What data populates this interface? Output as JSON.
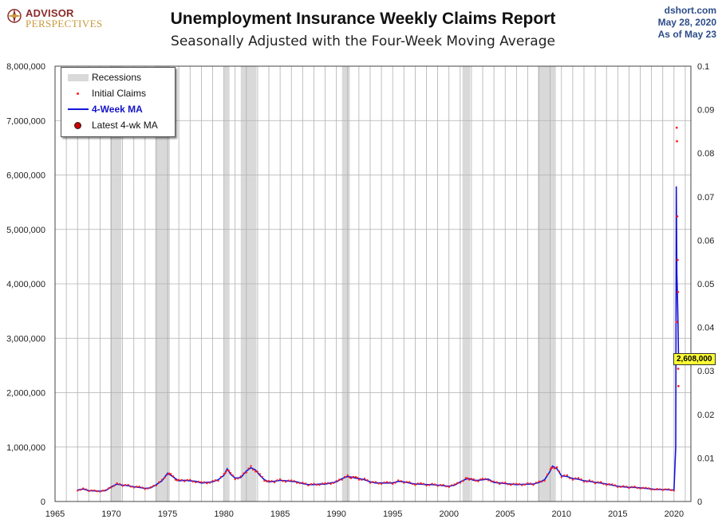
{
  "header": {
    "logo_line1": "ADVISOR",
    "logo_line2": "PERSPECTIVES",
    "title": "Unemployment Insurance Weekly Claims Report",
    "subtitle": "Seasonally Adjusted with the Four-Week Moving Average",
    "source": "dshort.com",
    "date": "May 28, 2020",
    "as_of": "As of May 23"
  },
  "colors": {
    "ma_line": "#1414dc",
    "claims_dots": "#ff2020",
    "recession": "#d9d9d9",
    "grid": "#b0b0b0",
    "callout": "#ffff33",
    "latest_dot": "#cc0000"
  },
  "chart_data": {
    "type": "line",
    "title": "Unemployment Insurance Weekly Claims Report",
    "subtitle": "Seasonally Adjusted with the Four-Week Moving Average",
    "xlim": [
      1965,
      2021.5
    ],
    "ylim": [
      0,
      8000000
    ],
    "y2lim": [
      0,
      0.1
    ],
    "x_ticks": [
      1965,
      1970,
      1975,
      1980,
      1985,
      1990,
      1995,
      2000,
      2005,
      2010,
      2015,
      2020
    ],
    "y_tick_labels": [
      "0",
      "1,000,000",
      "2,000,000",
      "3,000,000",
      "4,000,000",
      "5,000,000",
      "6,000,000",
      "7,000,000",
      "8,000,000"
    ],
    "y_tick_values": [
      0,
      1000000,
      2000000,
      3000000,
      4000000,
      5000000,
      6000000,
      7000000,
      8000000
    ],
    "y2_tick_labels": [
      "0",
      "0.01",
      "0.02",
      "0.03",
      "0.04",
      "0.05",
      "0.06",
      "0.07",
      "0.08",
      "0.09",
      "0.1"
    ],
    "grid": true,
    "legend_position": "top-left",
    "legend": [
      "Recessions",
      "Initial Claims",
      "4-Week MA",
      "Latest 4-wk MA"
    ],
    "recessions": [
      [
        1969.9,
        1970.9
      ],
      [
        1973.9,
        1975.2
      ],
      [
        1980.0,
        1980.5
      ],
      [
        1981.5,
        1982.9
      ],
      [
        1990.5,
        1991.2
      ],
      [
        2001.2,
        2001.9
      ],
      [
        2007.9,
        2009.5
      ]
    ],
    "series": [
      {
        "name": "4-Week MA",
        "x": [
          1967.0,
          1967.5,
          1968.0,
          1968.5,
          1969.0,
          1969.5,
          1970.0,
          1970.5,
          1971.0,
          1971.5,
          1972.0,
          1972.5,
          1973.0,
          1973.5,
          1974.0,
          1974.5,
          1975.0,
          1975.3,
          1975.7,
          1976.0,
          1976.5,
          1977.0,
          1977.5,
          1978.0,
          1978.5,
          1979.0,
          1979.5,
          1980.0,
          1980.3,
          1980.6,
          1981.0,
          1981.5,
          1982.0,
          1982.4,
          1982.8,
          1983.2,
          1983.6,
          1984.0,
          1984.5,
          1985.0,
          1985.5,
          1986.0,
          1986.5,
          1987.0,
          1987.5,
          1988.0,
          1988.5,
          1989.0,
          1989.5,
          1990.0,
          1990.5,
          1991.0,
          1991.3,
          1991.7,
          1992.0,
          1992.5,
          1993.0,
          1993.5,
          1994.0,
          1994.5,
          1995.0,
          1995.5,
          1996.0,
          1996.5,
          1997.0,
          1997.5,
          1998.0,
          1998.5,
          1999.0,
          1999.5,
          2000.0,
          2000.5,
          2001.0,
          2001.5,
          2001.8,
          2002.2,
          2002.6,
          2003.0,
          2003.5,
          2004.0,
          2004.5,
          2005.0,
          2005.5,
          2006.0,
          2006.5,
          2007.0,
          2007.5,
          2008.0,
          2008.5,
          2009.0,
          2009.2,
          2009.6,
          2010.0,
          2010.5,
          2011.0,
          2011.5,
          2012.0,
          2012.5,
          2013.0,
          2013.5,
          2014.0,
          2014.5,
          2015.0,
          2015.5,
          2016.0,
          2016.5,
          2017.0,
          2017.5,
          2018.0,
          2018.5,
          2019.0,
          2019.5,
          2020.0,
          2020.15,
          2020.2,
          2020.25,
          2020.3,
          2020.35,
          2020.4
        ],
        "values": [
          210000,
          230000,
          200000,
          195000,
          190000,
          200000,
          270000,
          320000,
          300000,
          290000,
          270000,
          260000,
          240000,
          250000,
          310000,
          380000,
          520000,
          480000,
          420000,
          380000,
          390000,
          380000,
          370000,
          340000,
          350000,
          360000,
          400000,
          480000,
          600000,
          500000,
          430000,
          440000,
          560000,
          620000,
          580000,
          480000,
          400000,
          360000,
          370000,
          390000,
          380000,
          370000,
          360000,
          330000,
          310000,
          310000,
          320000,
          320000,
          340000,
          360000,
          420000,
          460000,
          450000,
          430000,
          420000,
          400000,
          360000,
          340000,
          340000,
          340000,
          340000,
          370000,
          360000,
          340000,
          320000,
          320000,
          310000,
          310000,
          300000,
          290000,
          280000,
          300000,
          360000,
          410000,
          420000,
          390000,
          390000,
          400000,
          410000,
          350000,
          340000,
          330000,
          320000,
          310000,
          315000,
          320000,
          320000,
          350000,
          400000,
          560000,
          650000,
          600000,
          470000,
          460000,
          420000,
          410000,
          380000,
          370000,
          350000,
          340000,
          320000,
          300000,
          280000,
          270000,
          260000,
          260000,
          250000,
          240000,
          230000,
          220000,
          220000,
          215000,
          210000,
          1000000,
          5790000,
          4200000,
          3800000,
          3300000,
          2608000
        ]
      }
    ],
    "initial_claims_outliers": [
      {
        "x": 2020.22,
        "y": 3300000
      },
      {
        "x": 2020.24,
        "y": 6870000
      },
      {
        "x": 2020.26,
        "y": 6620000
      },
      {
        "x": 2020.29,
        "y": 5240000
      },
      {
        "x": 2020.32,
        "y": 4440000
      },
      {
        "x": 2020.35,
        "y": 3850000
      },
      {
        "x": 2020.37,
        "y": 2440000
      },
      {
        "x": 2020.39,
        "y": 2120000
      }
    ],
    "latest": {
      "x": 2020.4,
      "value": 2608000,
      "label": "2,608,000"
    }
  }
}
